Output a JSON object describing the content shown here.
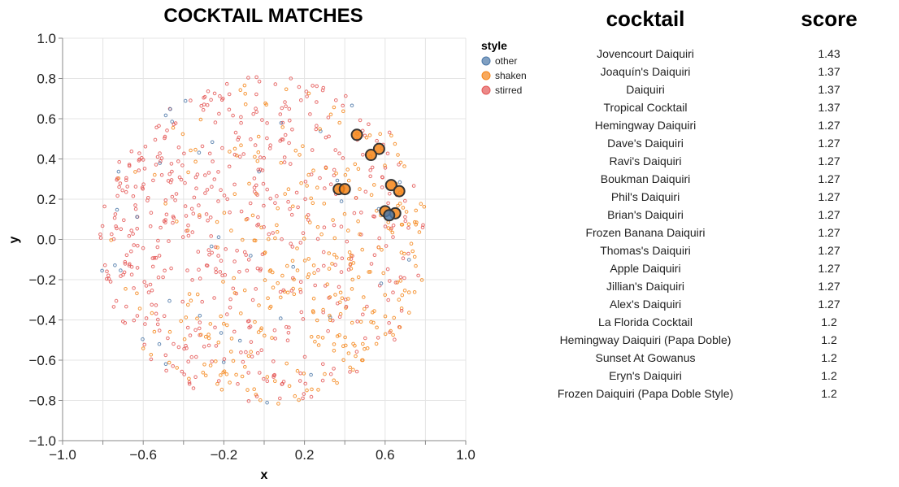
{
  "chart_data": {
    "type": "scatter",
    "title": "COCKTAIL MATCHES",
    "xlabel": "x",
    "ylabel": "y",
    "xlim": [
      -1.0,
      1.0
    ],
    "ylim": [
      -1.0,
      1.0
    ],
    "x_ticks": [
      -1.0,
      -0.6,
      -0.2,
      0.2,
      0.6,
      1.0
    ],
    "x_tick_labels": [
      "−1.0",
      "−0.6",
      "−0.2",
      "0.2",
      "0.6",
      "1.0"
    ],
    "y_ticks": [
      1.0,
      0.8,
      0.6,
      0.4,
      0.2,
      0.0,
      -0.2,
      -0.4,
      -0.6,
      -0.8,
      -1.0
    ],
    "y_tick_labels": [
      "1.0",
      "0.8",
      "0.6",
      "0.4",
      "0.2",
      "0.0",
      "−0.2",
      "−0.4",
      "−0.6",
      "−0.8",
      "−1.0"
    ],
    "grid": true,
    "legend": {
      "title": "style",
      "placement": "top-right",
      "entries": [
        {
          "name": "other",
          "color": "#4c78a8"
        },
        {
          "name": "shaken",
          "color": "#f58518"
        },
        {
          "name": "stirred",
          "color": "#e45756"
        }
      ]
    },
    "background_points_note_count": 900,
    "highlighted_matches": [
      {
        "x": 0.46,
        "y": 0.52,
        "style": "shaken"
      },
      {
        "x": 0.57,
        "y": 0.45,
        "style": "shaken"
      },
      {
        "x": 0.53,
        "y": 0.42,
        "style": "shaken"
      },
      {
        "x": 0.37,
        "y": 0.25,
        "style": "shaken"
      },
      {
        "x": 0.4,
        "y": 0.25,
        "style": "shaken"
      },
      {
        "x": 0.63,
        "y": 0.27,
        "style": "shaken"
      },
      {
        "x": 0.67,
        "y": 0.24,
        "style": "shaken"
      },
      {
        "x": 0.6,
        "y": 0.14,
        "style": "shaken"
      },
      {
        "x": 0.65,
        "y": 0.13,
        "style": "shaken"
      },
      {
        "x": 0.62,
        "y": 0.12,
        "style": "other"
      }
    ],
    "table": {
      "headers": [
        "cocktail",
        "score"
      ],
      "rows": [
        {
          "cocktail": "Jovencourt Daiquiri",
          "score": "1.43"
        },
        {
          "cocktail": "Joaquín's Daiquiri",
          "score": "1.37"
        },
        {
          "cocktail": "Daiquiri",
          "score": "1.37"
        },
        {
          "cocktail": "Tropical Cocktail",
          "score": "1.37"
        },
        {
          "cocktail": "Hemingway Daiquiri",
          "score": "1.27"
        },
        {
          "cocktail": "Dave's Daiquiri",
          "score": "1.27"
        },
        {
          "cocktail": "Ravi's Daiquiri",
          "score": "1.27"
        },
        {
          "cocktail": "Boukman Daiquiri",
          "score": "1.27"
        },
        {
          "cocktail": "Phil's Daiquiri",
          "score": "1.27"
        },
        {
          "cocktail": "Brian's Daiquiri",
          "score": "1.27"
        },
        {
          "cocktail": "Frozen Banana Daiquiri",
          "score": "1.27"
        },
        {
          "cocktail": "Thomas's Daiquiri",
          "score": "1.27"
        },
        {
          "cocktail": "Apple Daiquiri",
          "score": "1.27"
        },
        {
          "cocktail": "Jillian's Daiquiri",
          "score": "1.27"
        },
        {
          "cocktail": "Alex's Daiquiri",
          "score": "1.27"
        },
        {
          "cocktail": "La Florida Cocktail",
          "score": "1.2"
        },
        {
          "cocktail": "Hemingway Daiquiri (Papa Doble)",
          "score": "1.2"
        },
        {
          "cocktail": "Sunset At Gowanus",
          "score": "1.2"
        },
        {
          "cocktail": "Eryn's Daiquiri",
          "score": "1.2"
        },
        {
          "cocktail": "Frozen Daiquiri (Papa Doble Style)",
          "score": "1.2"
        }
      ]
    }
  }
}
